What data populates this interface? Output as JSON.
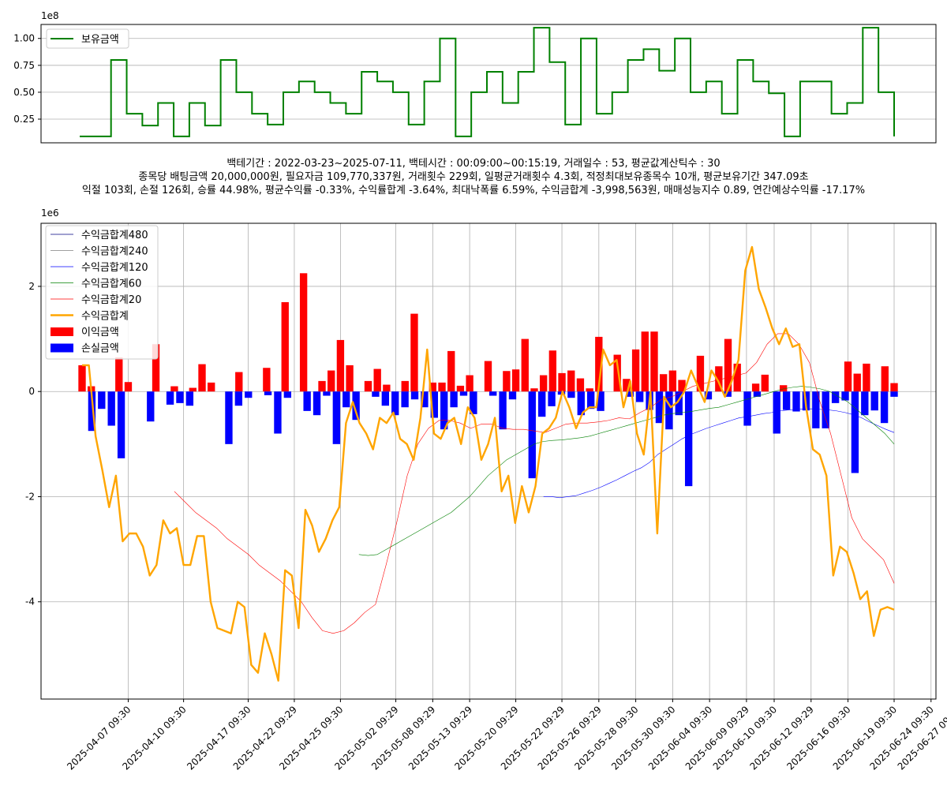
{
  "top_chart": {
    "multiplier": "1e8",
    "yticks": [
      "1.00",
      "0.75",
      "0.50",
      "0.25"
    ],
    "ytick_values": [
      1.0,
      0.75,
      0.5,
      0.25
    ],
    "legend_label": "보유금액",
    "line_color": "#008000"
  },
  "summary_lines": [
    "백테기간 : 2022-03-23~2025-07-11, 백테시간 : 00:09:00~00:15:19, 거래일수 : 53, 평균값계산틱수 : 30",
    "종목당 배팅금액 20,000,000원, 필요자금 109,770,337원, 거래횟수 229회, 일평균거래횟수 4.3회, 적정최대보유종목수 10개, 평균보유기간 347.09초",
    "익절 103회, 손절 126회, 승률 44.98%, 평균수익률 -0.33%, 수익률합계 -3.64%, 최대낙폭률 6.59%, 수익금합계 -3,998,563원, 매매성능지수 0.89, 연간예상수익률 -17.17%"
  ],
  "chart_data": [
    {
      "type": "line",
      "title": "",
      "series": [
        {
          "name": "보유금액",
          "color": "#008000",
          "values": [
            0.09,
            0.09,
            0.8,
            0.3,
            0.19,
            0.4,
            0.09,
            0.4,
            0.19,
            0.8,
            0.5,
            0.3,
            0.2,
            0.5,
            0.6,
            0.5,
            0.4,
            0.3,
            0.69,
            0.6,
            0.5,
            0.2,
            0.6,
            1.0,
            0.09,
            0.5,
            0.69,
            0.4,
            0.69,
            1.1,
            0.78,
            0.2,
            1.0,
            0.3,
            0.5,
            0.8,
            0.9,
            0.7,
            1.0,
            0.5,
            0.6,
            0.3,
            0.8,
            0.6,
            0.49,
            0.09,
            0.6,
            0.6,
            0.3,
            0.4,
            1.1,
            0.5,
            0.09
          ]
        }
      ],
      "ylim": [
        0.03,
        1.13
      ],
      "y_multiplier": "1e8"
    },
    {
      "type": "bar",
      "title": "",
      "multiplier": "1e6",
      "ylim": [
        -5.85,
        3.2
      ],
      "yticks": [
        2,
        0,
        -2,
        -4
      ],
      "ytick_labels": [
        "2",
        "0",
        "-2",
        "-4"
      ],
      "x_labels": [
        "2025-04-07 09:30",
        "2025-04-10 09:30",
        "2025-04-17 09:30",
        "2025-04-22 09:29",
        "2025-04-25 09:30",
        "2025-05-02 09:29",
        "2025-05-08 09:29",
        "2025-05-13 09:29",
        "2025-05-20 09:29",
        "2025-05-22 09:29",
        "2025-05-26 09:29",
        "2025-05-28 09:30",
        "2025-05-30 09:30",
        "2025-06-04 09:30",
        "2025-06-09 09:29",
        "2025-06-10 09:30",
        "2025-06-12 09:29",
        "2025-06-16 09:30",
        "2025-06-19 09:30",
        "2025-06-24 09:30",
        "2025-06-27 09:29"
      ],
      "x_label_positions": [
        5,
        11,
        18,
        23,
        28,
        34,
        38,
        42,
        47,
        52,
        56,
        60,
        64,
        68,
        72,
        75,
        79,
        83,
        88,
        92,
        95
      ],
      "bars_profit": {
        "name": "이익금액",
        "color": "#ff0000",
        "values": [
          0.5,
          0.1,
          0,
          0,
          0.65,
          0.18,
          0,
          0,
          0.9,
          0,
          0.1,
          0,
          0.07,
          0.52,
          0.17,
          0,
          0,
          0.37,
          0,
          0,
          0.45,
          0,
          1.7,
          0,
          2.25,
          0,
          0.2,
          0.4,
          0.98,
          0.5,
          0,
          0.2,
          0.43,
          0.13,
          0,
          0.2,
          1.48,
          0,
          0.17,
          0.17,
          0.77,
          0.11,
          0.31,
          0,
          0.58,
          0,
          0.39,
          0.42,
          1.0,
          0.06,
          0.31,
          0.78,
          0.35,
          0.4,
          0.25,
          0.06,
          1.04,
          0,
          0.7,
          0.24,
          0.8,
          1.14,
          1.14,
          0.33,
          0.4,
          0.22,
          0,
          0.68,
          0,
          0.48,
          1.0,
          0.53,
          0,
          0.15,
          0.32,
          0,
          0.12,
          0,
          0,
          0,
          0,
          0,
          0,
          0.57,
          0.34,
          0.53,
          0,
          0.48,
          0.16
        ]
      },
      "bars_loss": {
        "name": "손실금액",
        "color": "#0000ff",
        "values": [
          0,
          -0.75,
          -0.33,
          -0.65,
          -1.27,
          0,
          0,
          -0.57,
          0,
          -0.25,
          -0.22,
          -0.27,
          0,
          0,
          0,
          -1.0,
          -0.27,
          -0.12,
          0,
          -0.07,
          -0.8,
          -0.12,
          0,
          -0.37,
          -0.45,
          -0.08,
          -1.0,
          -0.3,
          -0.54,
          0,
          -0.1,
          -0.27,
          -0.45,
          -0.3,
          -0.15,
          -0.3,
          -0.5,
          -0.72,
          -0.3,
          -0.08,
          -0.43,
          0,
          -0.08,
          -0.72,
          -0.15,
          0,
          -1.65,
          -0.48,
          -0.28,
          -0.06,
          -0.12,
          -0.45,
          -0.33,
          -0.37,
          0,
          0,
          -0.1,
          -0.2,
          -0.35,
          -0.6,
          -0.72,
          -0.45,
          -1.8,
          0,
          -0.15,
          0,
          -0.1,
          0,
          -0.65,
          -0.1,
          0,
          -0.8,
          -0.35,
          -0.38,
          -0.36,
          -0.7,
          -0.7,
          -0.22,
          -0.17,
          -1.55,
          -0.45,
          -0.36,
          -0.6,
          -0.1
        ]
      },
      "lines": [
        {
          "name": "수익금합계480",
          "color": "#000080",
          "width": 0.6,
          "values": []
        },
        {
          "name": "수익금합계240",
          "color": "#808080",
          "width": 0.6,
          "values": []
        },
        {
          "name": "수익금합계120",
          "color": "#0000ff",
          "width": 0.6,
          "start": 50,
          "values": [
            -2.0,
            -2.0,
            -2.02,
            -2.0,
            -1.98,
            -1.93,
            -1.88,
            -1.82,
            -1.75,
            -1.68,
            -1.6,
            -1.52,
            -1.45,
            -1.35,
            -1.2,
            -1.1,
            -1.0,
            -0.9,
            -0.82,
            -0.76,
            -0.7,
            -0.65,
            -0.6,
            -0.55,
            -0.5,
            -0.48,
            -0.45,
            -0.42,
            -0.4,
            -0.37,
            -0.35,
            -0.34,
            -0.33,
            -0.33,
            -0.34,
            -0.35,
            -0.37,
            -0.4,
            -0.44,
            -0.5,
            -0.58,
            -0.65,
            -0.72,
            -0.78
          ]
        },
        {
          "name": "수익금합계60",
          "color": "#008000",
          "width": 0.6,
          "start": 30,
          "values": [
            -3.1,
            -3.12,
            -3.1,
            -3.0,
            -2.9,
            -2.8,
            -2.7,
            -2.6,
            -2.5,
            -2.4,
            -2.3,
            -2.15,
            -2.0,
            -1.8,
            -1.6,
            -1.45,
            -1.3,
            -1.2,
            -1.1,
            -1.0,
            -0.95,
            -0.93,
            -0.92,
            -0.9,
            -0.88,
            -0.85,
            -0.8,
            -0.75,
            -0.7,
            -0.65,
            -0.6,
            -0.55,
            -0.5,
            -0.45,
            -0.42,
            -0.4,
            -0.38,
            -0.35,
            -0.32,
            -0.3,
            -0.25,
            -0.2,
            -0.15,
            -0.1,
            -0.05,
            0.0,
            0.05,
            0.08,
            0.1,
            0.08,
            0.05,
            0.0,
            -0.1,
            -0.2,
            -0.35,
            -0.5,
            -0.65,
            -0.8,
            -1.0
          ]
        },
        {
          "name": "수익금합계20",
          "color": "#ff0000",
          "width": 0.6,
          "start": 10,
          "values": [
            -1.9,
            -2.1,
            -2.3,
            -2.45,
            -2.6,
            -2.8,
            -2.95,
            -3.1,
            -3.3,
            -3.45,
            -3.6,
            -3.8,
            -4.0,
            -4.3,
            -4.55,
            -4.6,
            -4.55,
            -4.4,
            -4.2,
            -4.05,
            -3.3,
            -2.5,
            -1.6,
            -1.0,
            -0.7,
            -0.55,
            -0.55,
            -0.6,
            -0.7,
            -0.62,
            -0.62,
            -0.7,
            -0.72,
            -0.72,
            -0.75,
            -0.78,
            -0.7,
            -0.62,
            -0.6,
            -0.6,
            -0.58,
            -0.55,
            -0.5,
            -0.52,
            -0.4,
            -0.3,
            -0.15,
            -0.1,
            0.0,
            0.1,
            0.15,
            0.2,
            0.25,
            0.3,
            0.35,
            0.55,
            0.9,
            1.1,
            1.1,
            0.9,
            0.55,
            -0.2,
            -0.8,
            -1.6,
            -2.4,
            -2.8,
            -3.0,
            -3.2,
            -3.65
          ]
        },
        {
          "name": "수익금합계",
          "color": "#ffa500",
          "width": 2.4,
          "values": [
            0.5,
            0.5,
            -0.85,
            -1.5,
            -2.2,
            -1.6,
            -2.85,
            -2.7,
            -2.7,
            -2.95,
            -3.5,
            -3.3,
            -2.45,
            -2.7,
            -2.6,
            -3.3,
            -3.3,
            -2.75,
            -2.75,
            -4.0,
            -4.5,
            -4.55,
            -4.6,
            -4.0,
            -4.1,
            -5.2,
            -5.35,
            -4.6,
            -5.0,
            -5.5,
            -3.4,
            -3.5,
            -4.5,
            -2.25,
            -2.55,
            -3.05,
            -2.8,
            -2.45,
            -2.2,
            -0.6,
            -0.2,
            -0.6,
            -0.8,
            -1.1,
            -0.5,
            -0.6,
            -0.4,
            -0.9,
            -1.0,
            -1.3,
            -0.5,
            0.8,
            -0.8,
            -0.9,
            -0.6,
            -0.5,
            -1.0,
            -0.3,
            -0.5,
            -1.3,
            -1.0,
            -0.5,
            -1.9,
            -1.6,
            -2.5,
            -1.8,
            -2.3,
            -1.8,
            -0.8,
            -0.7,
            -0.5,
            0.0,
            -0.3,
            -0.7,
            -0.4,
            -0.3,
            -0.3,
            0.8,
            0.5,
            0.6,
            -0.3,
            0.2,
            -0.8,
            -1.2,
            0.0,
            -2.7,
            -0.1,
            -0.3,
            -0.2,
            0.0,
            0.4,
            0.1,
            -0.2,
            0.4,
            0.2,
            -0.1,
            0.2,
            0.6,
            2.3,
            2.75,
            1.95,
            1.6,
            1.2,
            0.9,
            1.2,
            0.85,
            0.9,
            -0.3,
            -1.1,
            -1.2,
            -1.6,
            -3.5,
            -2.95,
            -3.05,
            -3.45,
            -3.95,
            -3.8,
            -4.65,
            -4.15,
            -4.1,
            -4.15
          ]
        }
      ],
      "legend": [
        "수익금합계480",
        "수익금합계240",
        "수익금합계120",
        "수익금합계60",
        "수익금합계20",
        "수익금합계",
        "이익금액",
        "손실금액"
      ]
    }
  ]
}
